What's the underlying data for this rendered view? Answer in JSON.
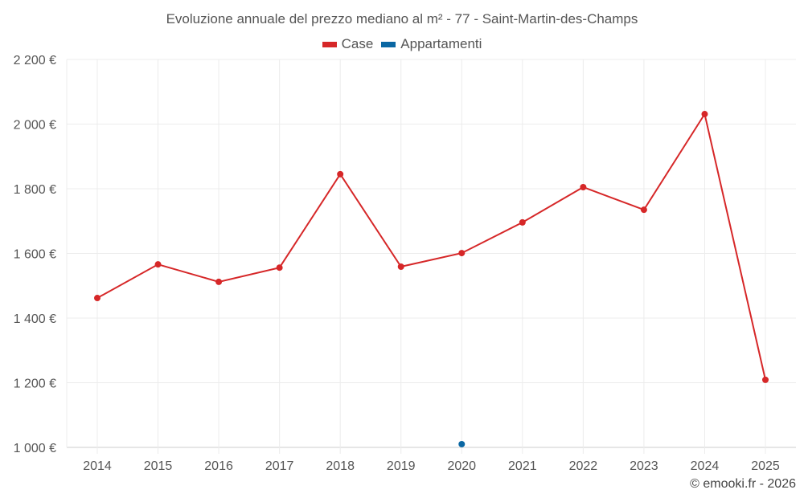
{
  "chart_data": {
    "type": "line",
    "title": "Evoluzione annuale del prezzo mediano al m² - 77 - Saint-Martin-des-Champs",
    "categories": [
      "2014",
      "2015",
      "2016",
      "2017",
      "2018",
      "2019",
      "2020",
      "2021",
      "2022",
      "2023",
      "2024",
      "2025"
    ],
    "series": [
      {
        "name": "Case",
        "color": "#d62728",
        "values": [
          1462,
          1566,
          1512,
          1556,
          1845,
          1559,
          1601,
          1696,
          1805,
          1735,
          2031,
          1209
        ]
      },
      {
        "name": "Appartamenti",
        "color": "#0a67a3",
        "values": [
          null,
          null,
          null,
          null,
          null,
          null,
          1010,
          null,
          null,
          null,
          null,
          null
        ]
      }
    ],
    "ylim": [
      1000,
      2200
    ],
    "yticks": [
      1000,
      1200,
      1400,
      1600,
      1800,
      2000,
      2200
    ],
    "ytick_labels": [
      "1 000 €",
      "1 200 €",
      "1 400 €",
      "1 600 €",
      "1 800 €",
      "2 000 €",
      "2 200 €"
    ],
    "grid": true,
    "legend_position": "top-center",
    "xlabel": "",
    "ylabel": ""
  },
  "credit": "© emooki.fr - 2026"
}
